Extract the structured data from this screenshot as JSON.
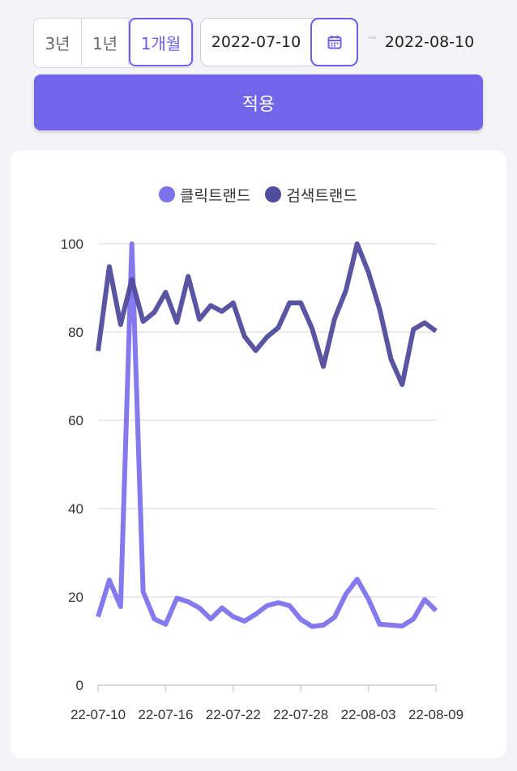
{
  "filters": {
    "periods": [
      {
        "label": "3년",
        "active": false
      },
      {
        "label": "1년",
        "active": false
      },
      {
        "label": "1개월",
        "active": true
      }
    ],
    "start_date": "2022-07-10",
    "end_date": "2022-08-10",
    "apply_label": "적용"
  },
  "colors": {
    "accent": "#6a5ff0",
    "button": "#7166ea",
    "series_click": "#7d72ec",
    "series_search": "#514c9e"
  },
  "icons": {
    "calendar": "calendar-icon"
  },
  "chart_data": {
    "type": "line",
    "legend_position": "top-center",
    "grid": true,
    "xlabel": "",
    "ylabel": "",
    "ylim": [
      0,
      100
    ],
    "yticks": [
      0,
      20,
      40,
      60,
      80,
      100
    ],
    "x_tick_labels": [
      "22-07-10",
      "22-07-16",
      "22-07-22",
      "22-07-28",
      "22-08-03",
      "22-08-09"
    ],
    "x_tick_index": [
      0,
      6,
      12,
      18,
      24,
      30
    ],
    "x": [
      "22-07-10",
      "22-07-11",
      "22-07-12",
      "22-07-13",
      "22-07-14",
      "22-07-15",
      "22-07-16",
      "22-07-17",
      "22-07-18",
      "22-07-19",
      "22-07-20",
      "22-07-21",
      "22-07-22",
      "22-07-23",
      "22-07-24",
      "22-07-25",
      "22-07-26",
      "22-07-27",
      "22-07-28",
      "22-07-29",
      "22-07-30",
      "22-07-31",
      "22-08-01",
      "22-08-02",
      "22-08-03",
      "22-08-04",
      "22-08-05",
      "22-08-06",
      "22-08-07",
      "22-08-08",
      "22-08-09"
    ],
    "series": [
      {
        "name": "클릭트랜드",
        "color": "#7d72ec",
        "values": [
          15.5,
          23.8,
          17.8,
          100,
          21.2,
          15.0,
          13.8,
          19.7,
          18.9,
          17.5,
          15.0,
          17.5,
          15.5,
          14.5,
          16.1,
          18.0,
          18.7,
          18.0,
          14.9,
          13.3,
          13.6,
          15.4,
          20.6,
          24.0,
          19.5,
          13.8,
          13.6,
          13.4,
          15.0,
          19.4,
          16.9
        ]
      },
      {
        "name": "검색트랜드",
        "color": "#514c9e",
        "values": [
          75.7,
          94.8,
          81.7,
          91.9,
          82.4,
          84.5,
          89.0,
          82.2,
          92.6,
          82.9,
          86.0,
          84.7,
          86.6,
          79.0,
          75.8,
          78.9,
          81.0,
          86.6,
          86.6,
          80.8,
          72.2,
          83.0,
          89.4,
          100,
          93.6,
          85.2,
          73.9,
          68.1,
          80.6,
          82.1,
          80.2
        ]
      }
    ]
  }
}
